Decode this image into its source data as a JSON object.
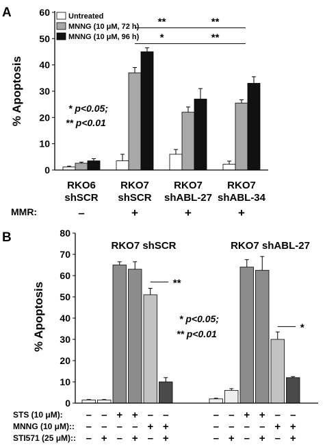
{
  "chart_data": [
    {
      "panel": "A",
      "type": "bar",
      "ylabel": "% Apoptosis",
      "ylim": [
        0,
        60
      ],
      "yticks": [
        0,
        10,
        20,
        30,
        40,
        50,
        60
      ],
      "categories": [
        {
          "line1": "RKO6",
          "line2": "shSCR",
          "mmr": "–"
        },
        {
          "line1": "RKO7",
          "line2": "shSCR",
          "mmr": "+"
        },
        {
          "line1": "RKO7",
          "line2": "shABL-27",
          "mmr": "+"
        },
        {
          "line1": "RKO7",
          "line2": "shABL-34",
          "mmr": "+"
        }
      ],
      "row_label": "MMR:",
      "series": [
        {
          "name": "Untreated",
          "color": "#ffffff",
          "values": [
            1.2,
            3.5,
            6.0,
            2.2
          ],
          "errors": [
            0.3,
            2.5,
            1.8,
            1.2
          ]
        },
        {
          "name": "MNNG (10 μM, 72 h)",
          "color": "#a8a8a8",
          "values": [
            2.6,
            37.0,
            22.0,
            25.5
          ],
          "errors": [
            0.4,
            2.0,
            2.0,
            1.2
          ]
        },
        {
          "name": "MNNG (10 μM, 96 h)",
          "color": "#111111",
          "values": [
            3.5,
            45.0,
            27.0,
            33.0
          ],
          "errors": [
            0.8,
            1.5,
            4.0,
            2.5
          ]
        }
      ],
      "significance": [
        {
          "from": 1,
          "to": 2,
          "level": 52,
          "label": "**"
        },
        {
          "from": 2,
          "to": 3,
          "level": 52,
          "label": "**"
        },
        {
          "from": 1,
          "to": 2,
          "level": 46,
          "label": "*"
        },
        {
          "from": 2,
          "to": 3,
          "level": 46,
          "label": "**"
        }
      ],
      "legend_text": [
        "* p<0.05;",
        "** p<0.01"
      ],
      "legend_placement": "top-left"
    },
    {
      "panel": "B",
      "type": "bar",
      "ylabel": "% Apoptosis",
      "ylim": [
        0,
        80
      ],
      "yticks": [
        0,
        10,
        20,
        30,
        40,
        50,
        60,
        70,
        80
      ],
      "groups": [
        "RKO7 shSCR",
        "RKO7 shABL-27"
      ],
      "bars": [
        {
          "value": 1.5,
          "error": 0.2,
          "color": "#eeeeee"
        },
        {
          "value": 1.5,
          "error": 0.2,
          "color": "#eeeeee"
        },
        {
          "value": 65.0,
          "error": 1.5,
          "color": "#8c8c8c"
        },
        {
          "value": 63.0,
          "error": 3.5,
          "color": "#8c8c8c"
        },
        {
          "value": 51.0,
          "error": 3.0,
          "color": "#c2c2c2"
        },
        {
          "value": 10.0,
          "error": 2.0,
          "color": "#4a4a4a"
        },
        {
          "value": 2.0,
          "error": 0.3,
          "color": "#eeeeee"
        },
        {
          "value": 6.0,
          "error": 0.8,
          "color": "#eeeeee"
        },
        {
          "value": 64.0,
          "error": 3.5,
          "color": "#8c8c8c"
        },
        {
          "value": 62.5,
          "error": 6.5,
          "color": "#8c8c8c"
        },
        {
          "value": 30.0,
          "error": 3.5,
          "color": "#c2c2c2"
        },
        {
          "value": 12.0,
          "error": 0.5,
          "color": "#4a4a4a"
        }
      ],
      "significance": [
        {
          "from": 4,
          "to": 5,
          "level": 57,
          "label": "**"
        },
        {
          "from": 10,
          "to": 11,
          "level": 36,
          "label": "*"
        }
      ],
      "legend_text": [
        "* p<0.05;",
        "** p<0.01"
      ],
      "conditions": [
        {
          "label": "STS (10 μM):",
          "marks": [
            "–",
            "–",
            "+",
            "+",
            "–",
            "–",
            "–",
            "–",
            "+",
            "+",
            "–",
            "–"
          ]
        },
        {
          "label": "MNNG (10 μM)::",
          "marks": [
            "–",
            "–",
            "–",
            "–",
            "+",
            "+",
            "–",
            "–",
            "–",
            "–",
            "+",
            "+"
          ]
        },
        {
          "label": "STI571 (25 μM)::",
          "marks": [
            "–",
            "+",
            "–",
            "+",
            "–",
            "+",
            "–",
            "+",
            "–",
            "+",
            "–",
            "+"
          ]
        }
      ]
    }
  ],
  "panel_labels": [
    "A",
    "B"
  ]
}
